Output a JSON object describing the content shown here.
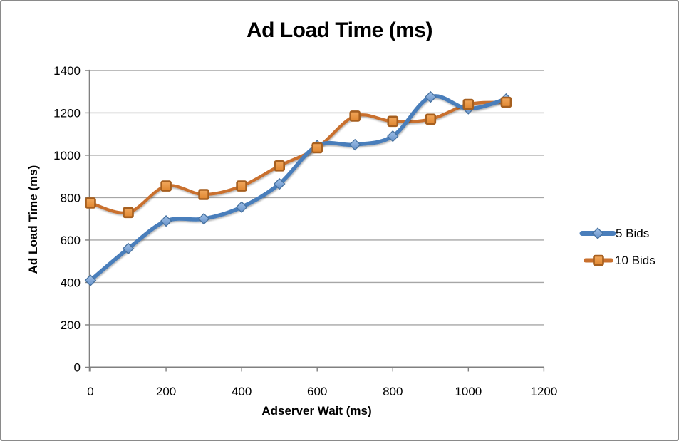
{
  "chart_data": {
    "type": "line",
    "title": "Ad Load Time (ms)",
    "xlabel": "Adserver Wait (ms)",
    "ylabel": "Ad Load Time (ms)",
    "x": [
      0,
      100,
      200,
      300,
      400,
      500,
      600,
      700,
      800,
      900,
      1000,
      1100
    ],
    "series": [
      {
        "name": "5 Bids",
        "marker": "diamond",
        "color": "#4A7EBB",
        "marker_fill_top": "#A3C2E8",
        "marker_fill_bottom": "#6490C8",
        "marker_stroke": "#46719F",
        "values": [
          410,
          560,
          690,
          700,
          755,
          865,
          1045,
          1050,
          1090,
          1275,
          1220,
          1265
        ]
      },
      {
        "name": "10 Bids",
        "marker": "square",
        "color": "#C9702E",
        "marker_fill_top": "#F1A85E",
        "marker_fill_bottom": "#E0862F",
        "marker_stroke": "#A65F1F",
        "values": [
          775,
          730,
          855,
          815,
          855,
          950,
          1035,
          1185,
          1160,
          1170,
          1240,
          1250
        ]
      }
    ],
    "xlim": [
      0,
      1200
    ],
    "ylim": [
      0,
      1400
    ],
    "x_ticks": [
      0,
      200,
      400,
      600,
      800,
      1000,
      1200
    ],
    "y_ticks": [
      0,
      200,
      400,
      600,
      800,
      1000,
      1200,
      1400
    ],
    "grid": "horizontal",
    "gridline_color": "#A6A6A6",
    "axis_color": "#808080",
    "text_color": "#000000",
    "legend_position": "right",
    "smoothed": true
  }
}
